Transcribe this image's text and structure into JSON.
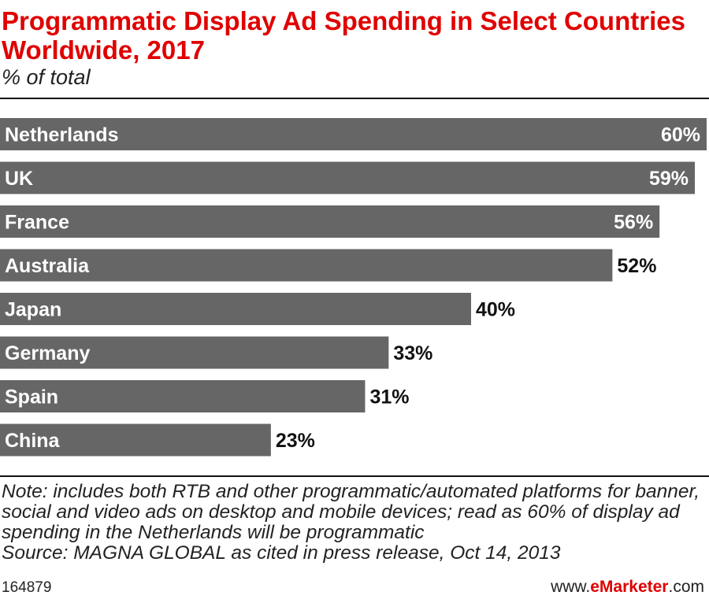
{
  "title": "Programmatic Display Ad Spending in Select Countries Worldwide, 2017",
  "subtitle": "% of total",
  "note": "Note: includes both RTB and other programmatic/automated platforms for banner, social and video ads on desktop and mobile devices; read as 60% of display ad spending in the Netherlands will be programmatic",
  "source": "Source: MAGNA GLOBAL as cited in press release, Oct 14, 2013",
  "footer": {
    "chart_id": "164879",
    "brand_prefix": "www.",
    "brand_name": "eMarketer",
    "brand_suffix": ".com"
  },
  "colors": {
    "bar": "#666666",
    "title": "#e00000",
    "brand": "#e00000"
  },
  "chart_data": {
    "type": "bar",
    "orientation": "horizontal",
    "categories": [
      "Netherlands",
      "UK",
      "France",
      "Australia",
      "Japan",
      "Germany",
      "Spain",
      "China"
    ],
    "values": [
      60,
      59,
      56,
      52,
      40,
      33,
      31,
      23
    ],
    "value_labels": [
      "60%",
      "59%",
      "56%",
      "52%",
      "40%",
      "33%",
      "31%",
      "23%"
    ],
    "unit": "%",
    "xlim": [
      0,
      60
    ],
    "grid": false,
    "legend": "none"
  }
}
